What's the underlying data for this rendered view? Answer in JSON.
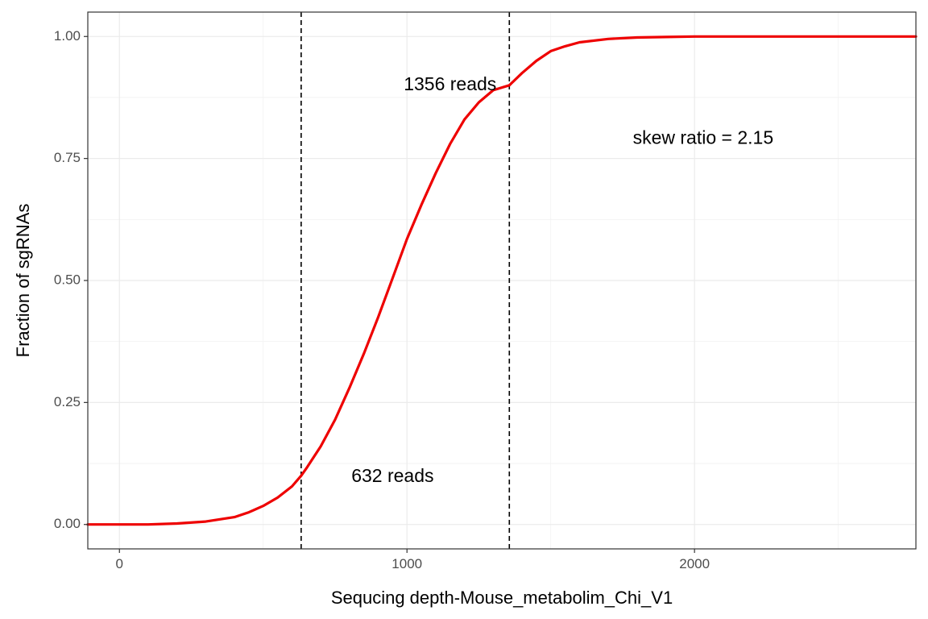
{
  "chart_data": {
    "type": "line",
    "title": "",
    "xlabel": "Sequcing depth-Mouse_metabolim_Chi_V1",
    "ylabel": "Fraction of sgRNAs",
    "xlim": [
      -110,
      2770
    ],
    "ylim": [
      -0.05,
      1.05
    ],
    "x_ticks": [
      0,
      1000,
      2000
    ],
    "x_tick_labels": [
      "0",
      "1000",
      "2000"
    ],
    "y_ticks": [
      0,
      0.25,
      0.5,
      0.75,
      1.0
    ],
    "y_tick_labels": [
      "0.00",
      "0.25",
      "0.50",
      "0.75",
      "1.00"
    ],
    "grid": true,
    "series": [
      {
        "color": "#ee0000",
        "x": [
          -110,
          0,
          100,
          200,
          300,
          400,
          450,
          500,
          550,
          600,
          632,
          650,
          700,
          750,
          800,
          850,
          900,
          950,
          1000,
          1050,
          1100,
          1150,
          1200,
          1250,
          1300,
          1356,
          1400,
          1450,
          1500,
          1550,
          1600,
          1700,
          1800,
          1900,
          2000,
          2200,
          2400,
          2600,
          2770
        ],
        "y": [
          0.0,
          0.0,
          0.0,
          0.002,
          0.006,
          0.015,
          0.025,
          0.038,
          0.055,
          0.078,
          0.1,
          0.115,
          0.16,
          0.215,
          0.28,
          0.35,
          0.425,
          0.505,
          0.585,
          0.655,
          0.72,
          0.78,
          0.83,
          0.865,
          0.89,
          0.9,
          0.925,
          0.95,
          0.97,
          0.98,
          0.988,
          0.995,
          0.998,
          0.999,
          1.0,
          1.0,
          1.0,
          1.0,
          1.0
        ]
      }
    ],
    "vlines": [
      632,
      1356
    ],
    "annotations": [
      {
        "text": "632 reads",
        "x": 950,
        "y": 0.097
      },
      {
        "text": "1356 reads",
        "x": 1150,
        "y": 0.9
      },
      {
        "text": "skew ratio = 2.15",
        "x": 2030,
        "y": 0.79
      }
    ]
  }
}
